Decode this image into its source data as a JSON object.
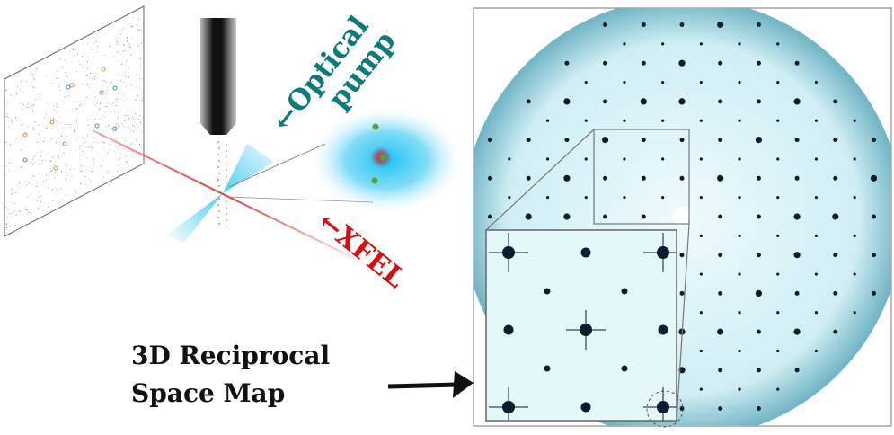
{
  "labels": {
    "optical_line1": "←Optical",
    "optical_line2": "pump",
    "xfel": "←XFEL",
    "map_line1": "3D Reciprocal",
    "map_line2": "Space Map"
  },
  "colors": {
    "optical": "#0b7a78",
    "xfel": "#d30f0f",
    "laser_cone": "#3cc8f0",
    "spot": "#0d1b2e",
    "map_background": "#cfeef3",
    "sample_dots": "#5aa02c"
  },
  "icons": {
    "arrow": "right-arrow-icon"
  }
}
